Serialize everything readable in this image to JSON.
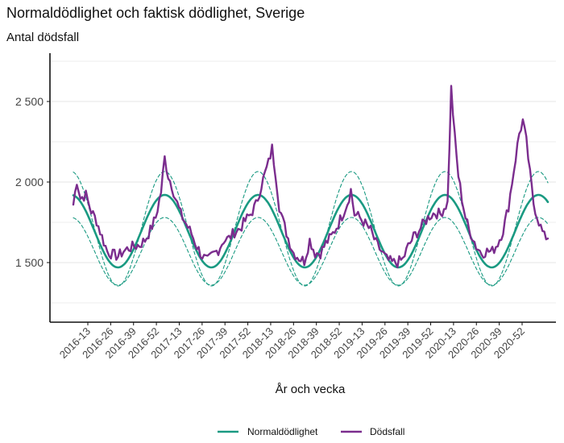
{
  "title": "Normaldödlighet och faktisk dödlighet, Sverige",
  "colors": {
    "normal": "#1a9a82",
    "deaths": "#7b2d8e",
    "grid": "#e6e6e6",
    "axis": "#111111"
  },
  "chart_data": {
    "type": "line",
    "title": "Normaldödlighet och faktisk dödlighet, Sverige",
    "ylabel": "Antal dödsfall",
    "xlabel": "År och vecka",
    "ylim": [
      1130,
      2800
    ],
    "yticks": [
      1500,
      2000,
      2500
    ],
    "ytick_labels": [
      "1 500",
      "2 000",
      "2 500"
    ],
    "xticks": [
      "2016-13",
      "2016-26",
      "2016-39",
      "2016-52",
      "2017-13",
      "2017-26",
      "2017-39",
      "2017-52",
      "2018-13",
      "2018-26",
      "2018-39",
      "2018-52",
      "2019-13",
      "2019-26",
      "2019-39",
      "2019-52",
      "2020-13",
      "2020-26",
      "2020-39",
      "2020-52"
    ],
    "x_start": "2016-01",
    "n_weeks": 266,
    "grid": "horizontal",
    "legend_position": "bottom",
    "legend": [
      "Normaldödlighet",
      "Dödsfall"
    ],
    "series": [
      {
        "name": "Normaldödlighet",
        "style": "solid",
        "color": "#1a9a82",
        "model": {
          "mean": 1695,
          "amplitude": 225,
          "peak_week": 52
        }
      },
      {
        "name": "",
        "style": "dashed",
        "color": "#1a9a82",
        "role": "upper band",
        "model": {
          "mean": 1710,
          "amplitude": 355,
          "peak_week": 52
        }
      },
      {
        "name": "",
        "style": "dashed",
        "color": "#1a9a82",
        "role": "lower band",
        "model": {
          "mean": 1570,
          "amplitude": 210,
          "peak_week": 52
        }
      },
      {
        "name": "Dödsfall",
        "style": "solid",
        "color": "#7b2d8e",
        "anchors": [
          [
            1,
            1860
          ],
          [
            3,
            2010
          ],
          [
            5,
            1900
          ],
          [
            8,
            1920
          ],
          [
            11,
            1820
          ],
          [
            14,
            1760
          ],
          [
            17,
            1660
          ],
          [
            20,
            1570
          ],
          [
            23,
            1550
          ],
          [
            26,
            1540
          ],
          [
            29,
            1570
          ],
          [
            32,
            1590
          ],
          [
            35,
            1600
          ],
          [
            38,
            1610
          ],
          [
            41,
            1640
          ],
          [
            44,
            1700
          ],
          [
            47,
            1780
          ],
          [
            50,
            1940
          ],
          [
            52,
            2150
          ],
          [
            54,
            2040
          ],
          [
            56,
            1980
          ],
          [
            58,
            1900
          ],
          [
            61,
            1800
          ],
          [
            64,
            1740
          ],
          [
            67,
            1680
          ],
          [
            70,
            1600
          ],
          [
            73,
            1540
          ],
          [
            76,
            1510
          ],
          [
            79,
            1550
          ],
          [
            82,
            1580
          ],
          [
            85,
            1640
          ],
          [
            88,
            1650
          ],
          [
            91,
            1690
          ],
          [
            94,
            1710
          ],
          [
            97,
            1760
          ],
          [
            100,
            1800
          ],
          [
            103,
            1860
          ],
          [
            106,
            1980
          ],
          [
            110,
            2120
          ],
          [
            112,
            2210
          ],
          [
            114,
            2050
          ],
          [
            116,
            1850
          ],
          [
            118,
            1760
          ],
          [
            121,
            1650
          ],
          [
            124,
            1560
          ],
          [
            127,
            1530
          ],
          [
            130,
            1510
          ],
          [
            133,
            1640
          ],
          [
            136,
            1560
          ],
          [
            139,
            1560
          ],
          [
            142,
            1620
          ],
          [
            145,
            1660
          ],
          [
            148,
            1720
          ],
          [
            151,
            1790
          ],
          [
            154,
            1870
          ],
          [
            156,
            1950
          ],
          [
            158,
            1800
          ],
          [
            161,
            1780
          ],
          [
            164,
            1740
          ],
          [
            167,
            1700
          ],
          [
            170,
            1620
          ],
          [
            173,
            1570
          ],
          [
            176,
            1520
          ],
          [
            179,
            1500
          ],
          [
            182,
            1500
          ],
          [
            185,
            1520
          ],
          [
            188,
            1600
          ],
          [
            191,
            1660
          ],
          [
            194,
            1700
          ],
          [
            197,
            1750
          ],
          [
            200,
            1790
          ],
          [
            203,
            1810
          ],
          [
            206,
            1800
          ],
          [
            208,
            1840
          ],
          [
            210,
            1870
          ],
          [
            212,
            2580
          ],
          [
            214,
            2280
          ],
          [
            216,
            2040
          ],
          [
            218,
            1900
          ],
          [
            220,
            1780
          ],
          [
            222,
            1700
          ],
          [
            224,
            1660
          ],
          [
            226,
            1600
          ],
          [
            229,
            1560
          ],
          [
            232,
            1570
          ],
          [
            235,
            1570
          ],
          [
            238,
            1620
          ],
          [
            241,
            1700
          ],
          [
            244,
            1850
          ],
          [
            246,
            2000
          ],
          [
            248,
            2150
          ],
          [
            250,
            2300
          ],
          [
            252,
            2380
          ],
          [
            254,
            2250
          ],
          [
            256,
            2050
          ],
          [
            258,
            1870
          ],
          [
            260,
            1790
          ],
          [
            262,
            1720
          ],
          [
            264,
            1660
          ],
          [
            266,
            1660
          ]
        ]
      }
    ]
  }
}
